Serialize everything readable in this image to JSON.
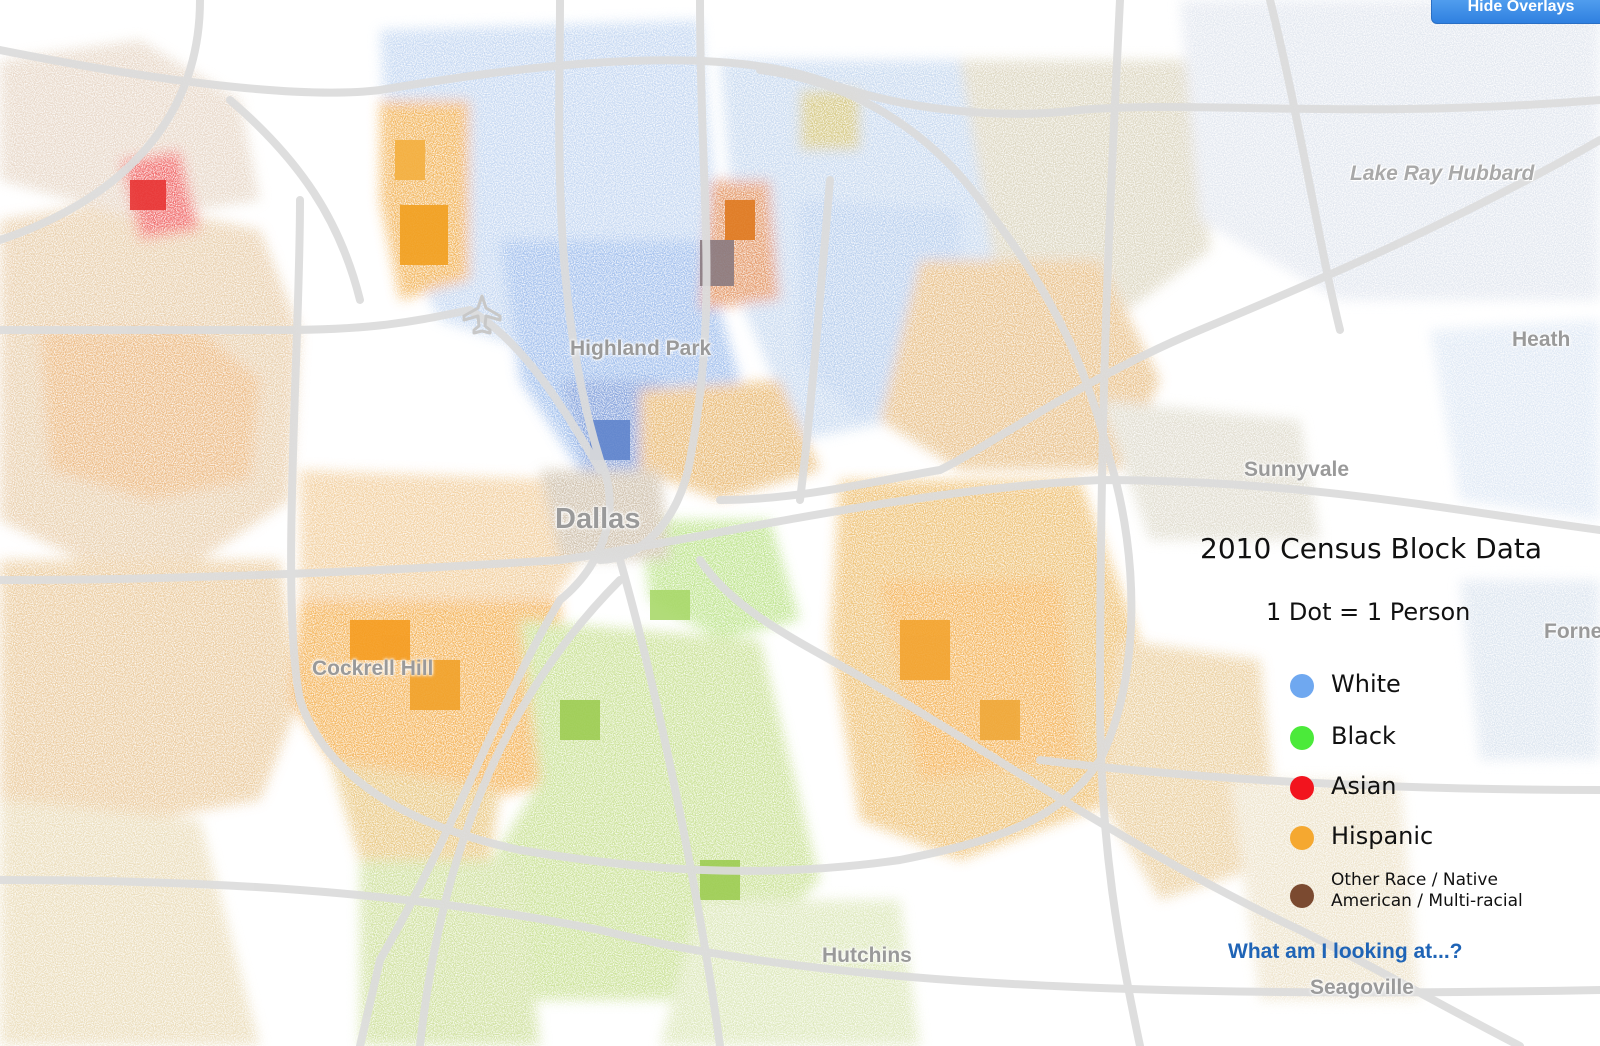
{
  "controls": {
    "hide_overlays_label": "Hide Overlays"
  },
  "places": {
    "lake": "Lake Ray Hubbard",
    "highland_park": "Highland Park",
    "heath": "Heath",
    "sunnyvale": "Sunnyvale",
    "dallas": "Dallas",
    "forney": "Forney",
    "cockrell_hill": "Cockrell Hill",
    "hutchins": "Hutchins",
    "seagoville": "Seagoville"
  },
  "legend": {
    "title": "2010 Census Block Data",
    "subtitle": "1 Dot = 1 Person",
    "items": [
      {
        "label": "White",
        "color": "#6fa8f0"
      },
      {
        "label": "Black",
        "color": "#4bea3a"
      },
      {
        "label": "Asian",
        "color": "#f2141e"
      },
      {
        "label": "Hispanic",
        "color": "#f5a830"
      },
      {
        "label_line1": "Other Race / Native",
        "label_line2": "American / Multi-racial",
        "color": "#7b4a30"
      }
    ]
  },
  "info_link": "What am I looking at...?",
  "icons": {
    "airport": "airplane-icon"
  }
}
